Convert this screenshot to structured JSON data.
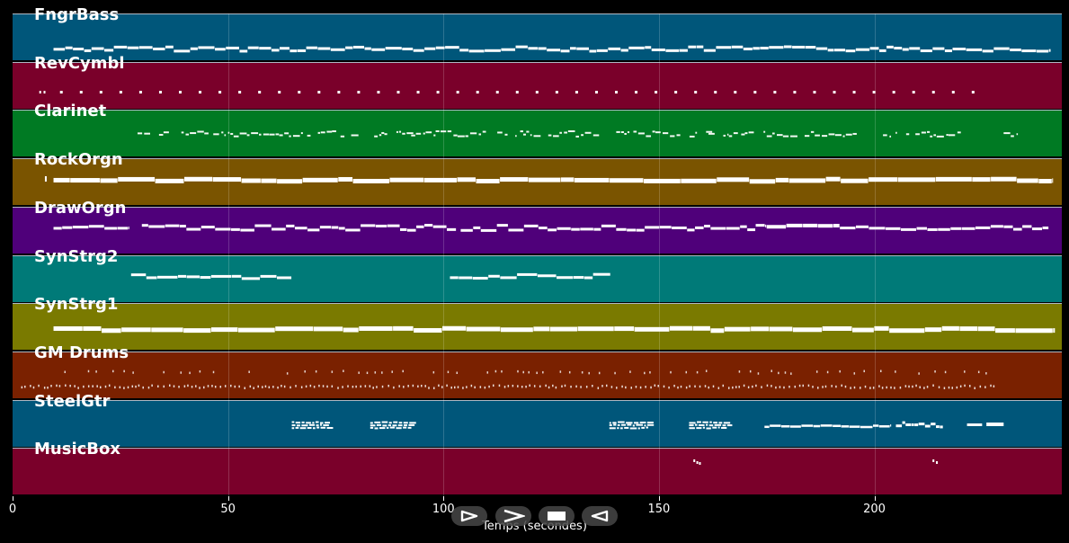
{
  "tracks": [
    {
      "name": "FngrBass",
      "color": "#00567a",
      "pattern": "bass"
    },
    {
      "name": "RevCymbl",
      "color": "#7a002a",
      "pattern": "dots"
    },
    {
      "name": "Clarinet",
      "color": "#007a23",
      "pattern": "clarinet"
    },
    {
      "name": "RockOrgn",
      "color": "#7a5400",
      "pattern": "thickline"
    },
    {
      "name": "DrawOrgn",
      "color": "#4f007a",
      "pattern": "drawline"
    },
    {
      "name": "SynStrg2",
      "color": "#007a78",
      "pattern": "strg2"
    },
    {
      "name": "SynStrg1",
      "color": "#7a7a00",
      "pattern": "thickline2"
    },
    {
      "name": "GM Drums",
      "color": "#7a2100",
      "pattern": "drums"
    },
    {
      "name": "SteelGtr",
      "color": "#00567a",
      "pattern": "guitar"
    },
    {
      "name": "MusicBox",
      "color": "#7a002a",
      "pattern": "musicbox"
    }
  ],
  "xaxis": {
    "ticks": [
      "0",
      "50",
      "100",
      "150",
      "200"
    ],
    "tick_values": [
      0,
      50,
      100,
      150,
      200
    ],
    "max": 243.5,
    "label": "Temps (secondes)"
  },
  "controls": [
    {
      "name": "play-icon",
      "label": "play"
    },
    {
      "name": "forward-icon",
      "label": "forward"
    },
    {
      "name": "stop-icon",
      "label": "stop"
    },
    {
      "name": "rewind-icon",
      "label": "rewind"
    }
  ]
}
